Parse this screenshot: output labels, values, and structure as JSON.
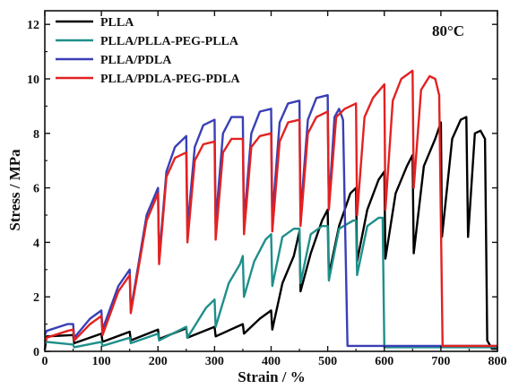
{
  "chart_data": {
    "type": "line",
    "title": "",
    "annotation": "80°C",
    "xlabel": "Strain / %",
    "ylabel": "Stress / MPa",
    "xlim": [
      0,
      800
    ],
    "ylim": [
      0,
      12.5
    ],
    "xticks": [
      0,
      100,
      200,
      300,
      400,
      500,
      600,
      700,
      800
    ],
    "yticks": [
      0,
      2,
      4,
      6,
      8,
      10,
      12
    ],
    "grid": false,
    "legend_position": "top-left",
    "series": [
      {
        "name": "PLLA",
        "color": "#000000",
        "points": [
          [
            0,
            0.05
          ],
          [
            3,
            0.55
          ],
          [
            50,
            0.6
          ],
          [
            52,
            0.3
          ],
          [
            100,
            0.65
          ],
          [
            102,
            0.35
          ],
          [
            150,
            0.72
          ],
          [
            152,
            0.4
          ],
          [
            200,
            0.8
          ],
          [
            202,
            0.45
          ],
          [
            250,
            0.85
          ],
          [
            252,
            0.5
          ],
          [
            300,
            0.9
          ],
          [
            302,
            0.55
          ],
          [
            350,
            1.0
          ],
          [
            352,
            0.65
          ],
          [
            380,
            1.2
          ],
          [
            400,
            1.5
          ],
          [
            402,
            0.8
          ],
          [
            420,
            2.5
          ],
          [
            440,
            3.5
          ],
          [
            450,
            4.4
          ],
          [
            452,
            2.2
          ],
          [
            470,
            3.6
          ],
          [
            490,
            4.8
          ],
          [
            500,
            5.2
          ],
          [
            502,
            2.8
          ],
          [
            520,
            4.6
          ],
          [
            540,
            5.8
          ],
          [
            550,
            6.0
          ],
          [
            552,
            3.3
          ],
          [
            570,
            5.2
          ],
          [
            590,
            6.3
          ],
          [
            600,
            6.6
          ],
          [
            602,
            3.4
          ],
          [
            620,
            5.8
          ],
          [
            640,
            6.8
          ],
          [
            650,
            7.2
          ],
          [
            652,
            3.6
          ],
          [
            670,
            6.8
          ],
          [
            690,
            7.8
          ],
          [
            700,
            8.4
          ],
          [
            702,
            4.2
          ],
          [
            720,
            7.8
          ],
          [
            735,
            8.5
          ],
          [
            745,
            8.6
          ],
          [
            748,
            4.2
          ],
          [
            760,
            8.0
          ],
          [
            770,
            8.1
          ],
          [
            778,
            7.8
          ],
          [
            782,
            0.4
          ],
          [
            790,
            0.1
          ],
          [
            800,
            0.1
          ]
        ]
      },
      {
        "name": "PLLA/PLLA-PEG-PLLA",
        "color": "#1f8f8a",
        "points": [
          [
            0,
            0.3
          ],
          [
            3,
            0.35
          ],
          [
            50,
            0.25
          ],
          [
            52,
            0.15
          ],
          [
            100,
            0.35
          ],
          [
            102,
            0.2
          ],
          [
            150,
            0.5
          ],
          [
            152,
            0.3
          ],
          [
            200,
            0.65
          ],
          [
            202,
            0.4
          ],
          [
            250,
            0.9
          ],
          [
            252,
            0.5
          ],
          [
            285,
            1.6
          ],
          [
            300,
            1.9
          ],
          [
            302,
            0.9
          ],
          [
            325,
            2.5
          ],
          [
            345,
            3.2
          ],
          [
            350,
            3.5
          ],
          [
            352,
            2.0
          ],
          [
            370,
            3.3
          ],
          [
            390,
            4.1
          ],
          [
            400,
            4.3
          ],
          [
            402,
            2.4
          ],
          [
            420,
            4.2
          ],
          [
            440,
            4.5
          ],
          [
            450,
            4.5
          ],
          [
            452,
            2.5
          ],
          [
            470,
            4.3
          ],
          [
            490,
            4.6
          ],
          [
            500,
            4.6
          ],
          [
            502,
            2.6
          ],
          [
            520,
            4.5
          ],
          [
            545,
            4.8
          ],
          [
            550,
            4.8
          ],
          [
            552,
            2.8
          ],
          [
            570,
            4.6
          ],
          [
            590,
            4.9
          ],
          [
            597,
            4.9
          ],
          [
            600,
            0.15
          ],
          [
            800,
            0.15
          ]
        ]
      },
      {
        "name": "PLLA/PDLA",
        "color": "#3a3fb5",
        "points": [
          [
            0,
            0.6
          ],
          [
            3,
            0.75
          ],
          [
            40,
            1.0
          ],
          [
            50,
            1.0
          ],
          [
            52,
            0.5
          ],
          [
            80,
            1.2
          ],
          [
            100,
            1.5
          ],
          [
            102,
            0.8
          ],
          [
            130,
            2.4
          ],
          [
            150,
            3.0
          ],
          [
            152,
            1.5
          ],
          [
            180,
            5.0
          ],
          [
            200,
            6.0
          ],
          [
            202,
            3.4
          ],
          [
            215,
            6.6
          ],
          [
            230,
            7.5
          ],
          [
            250,
            7.9
          ],
          [
            252,
            4.5
          ],
          [
            265,
            7.5
          ],
          [
            280,
            8.3
          ],
          [
            300,
            8.5
          ],
          [
            302,
            4.7
          ],
          [
            315,
            8.0
          ],
          [
            330,
            8.6
          ],
          [
            350,
            8.6
          ],
          [
            352,
            4.7
          ],
          [
            365,
            8.0
          ],
          [
            380,
            8.8
          ],
          [
            400,
            8.9
          ],
          [
            402,
            4.9
          ],
          [
            415,
            8.4
          ],
          [
            430,
            9.1
          ],
          [
            450,
            9.2
          ],
          [
            452,
            5.0
          ],
          [
            465,
            8.5
          ],
          [
            480,
            9.3
          ],
          [
            500,
            9.4
          ],
          [
            502,
            5.3
          ],
          [
            512,
            8.6
          ],
          [
            520,
            8.9
          ],
          [
            527,
            8.5
          ],
          [
            535,
            0.2
          ],
          [
            800,
            0.2
          ]
        ]
      },
      {
        "name": "PLLA/PDLA-PEG-PDLA",
        "color": "#e22222",
        "points": [
          [
            0,
            0.35
          ],
          [
            3,
            0.5
          ],
          [
            40,
            0.75
          ],
          [
            50,
            0.8
          ],
          [
            52,
            0.4
          ],
          [
            80,
            1.0
          ],
          [
            100,
            1.3
          ],
          [
            102,
            0.6
          ],
          [
            130,
            2.2
          ],
          [
            150,
            2.8
          ],
          [
            152,
            1.4
          ],
          [
            180,
            4.8
          ],
          [
            200,
            5.8
          ],
          [
            202,
            3.2
          ],
          [
            215,
            6.4
          ],
          [
            230,
            7.1
          ],
          [
            250,
            7.3
          ],
          [
            252,
            4.0
          ],
          [
            265,
            7.0
          ],
          [
            280,
            7.6
          ],
          [
            300,
            7.7
          ],
          [
            302,
            4.1
          ],
          [
            315,
            7.3
          ],
          [
            330,
            7.8
          ],
          [
            350,
            7.8
          ],
          [
            352,
            4.3
          ],
          [
            365,
            7.5
          ],
          [
            380,
            7.9
          ],
          [
            400,
            8.0
          ],
          [
            402,
            4.4
          ],
          [
            415,
            7.7
          ],
          [
            430,
            8.4
          ],
          [
            450,
            8.5
          ],
          [
            452,
            4.6
          ],
          [
            465,
            8.0
          ],
          [
            480,
            8.6
          ],
          [
            500,
            8.8
          ],
          [
            502,
            5.2
          ],
          [
            515,
            8.6
          ],
          [
            530,
            8.9
          ],
          [
            550,
            9.1
          ],
          [
            552,
            5.0
          ],
          [
            565,
            8.6
          ],
          [
            580,
            9.3
          ],
          [
            600,
            9.8
          ],
          [
            602,
            5.2
          ],
          [
            615,
            9.2
          ],
          [
            630,
            10.0
          ],
          [
            650,
            10.3
          ],
          [
            652,
            6.0
          ],
          [
            665,
            9.6
          ],
          [
            680,
            10.1
          ],
          [
            690,
            10.0
          ],
          [
            697,
            9.4
          ],
          [
            703,
            0.2
          ],
          [
            800,
            0.2
          ]
        ]
      }
    ]
  }
}
